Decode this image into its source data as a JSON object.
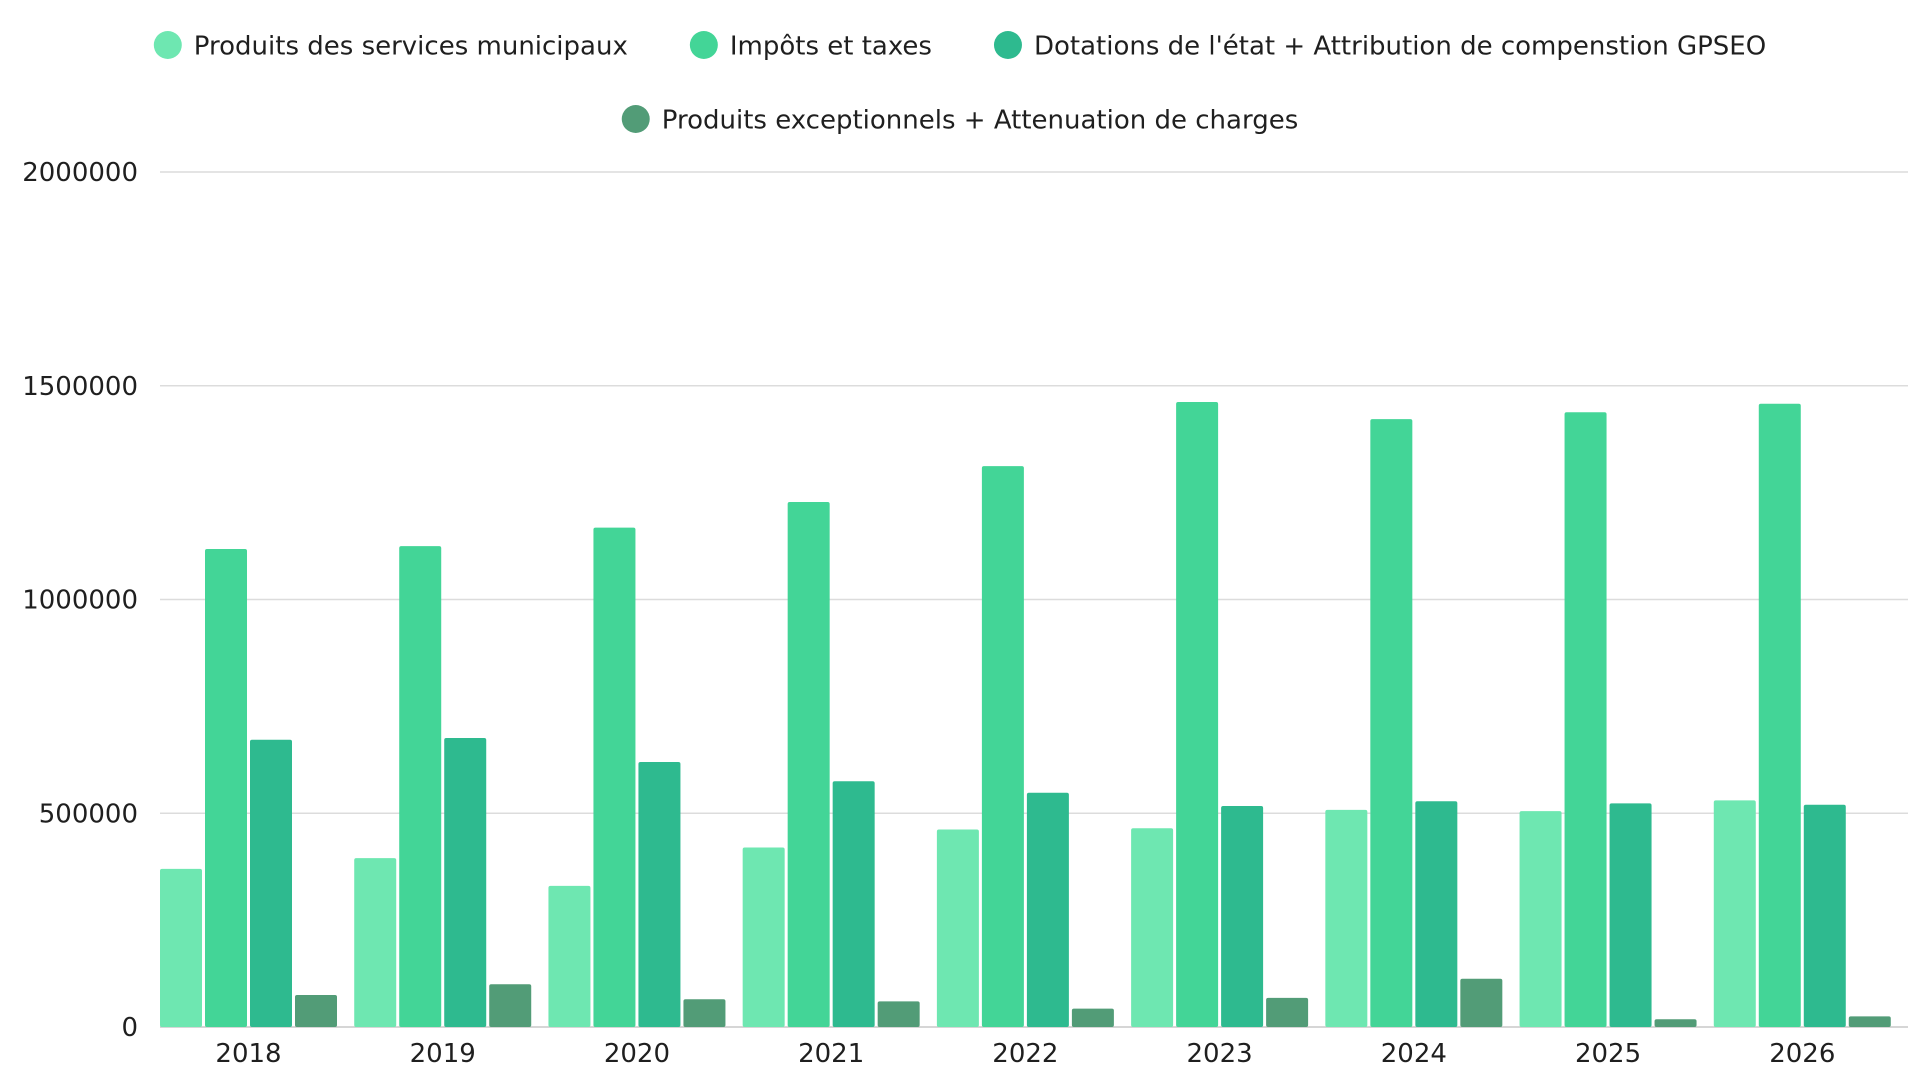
{
  "chart_data": {
    "type": "bar",
    "title": "",
    "xlabel": "",
    "ylabel": "",
    "categories": [
      "2018",
      "2019",
      "2020",
      "2021",
      "2022",
      "2023",
      "2024",
      "2025",
      "2026"
    ],
    "ylim": [
      0,
      2000000
    ],
    "y_ticks": [
      "0",
      "500000",
      "1000000",
      "1500000",
      "2000000"
    ],
    "grid": true,
    "legend_position": "top",
    "series": [
      {
        "name": "Produits des services municipaux",
        "color": "#6ee7b1",
        "values": [
          370000,
          395000,
          330000,
          420000,
          462000,
          465000,
          508000,
          505000,
          530000
        ]
      },
      {
        "name": "Impôts et taxes",
        "color": "#43d597",
        "values": [
          1118000,
          1125000,
          1168000,
          1228000,
          1312000,
          1462000,
          1422000,
          1438000,
          1458000
        ]
      },
      {
        "name": "Dotations de l'état + Attribution de compenstion GPSEO",
        "color": "#2eba8f",
        "values": [
          672000,
          676000,
          620000,
          575000,
          548000,
          517000,
          528000,
          523000,
          520000
        ]
      },
      {
        "name": "Produits exceptionnels + Attenuation de charges",
        "color": "#529c77",
        "values": [
          75000,
          100000,
          65000,
          60000,
          43000,
          68000,
          113000,
          18000,
          25000
        ]
      }
    ]
  }
}
